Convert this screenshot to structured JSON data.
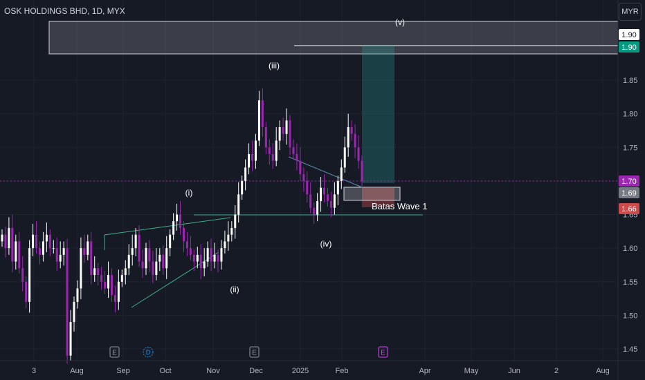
{
  "header": {
    "title": "OSK HOLDINGS BHD, 1D, MYX",
    "currency": "MYR"
  },
  "price_tags": [
    {
      "value": "1.90",
      "bg": "#ffffff",
      "fg": "#131722"
    },
    {
      "value": "1.90",
      "bg": "#089981",
      "fg": "#ffffff"
    },
    {
      "value": "1.70",
      "bg": "#9c27b0",
      "fg": "#ffffff"
    },
    {
      "value": "1.69",
      "bg": "#787b86",
      "fg": "#ffffff"
    },
    {
      "value": "1.66",
      "bg": "#cc4a4a",
      "fg": "#ffffff"
    }
  ],
  "wave_labels": [
    "(i)",
    "(ii)",
    "(iii)",
    "(iv)",
    "(v)"
  ],
  "annotation": "Batas Wave 1",
  "event_markers": [
    "E",
    "D",
    "E",
    "E"
  ],
  "colors": {
    "background": "#161a25",
    "candle_up": "#ffffff",
    "candle_down": "#9c27b0",
    "trendline": "#3fae88",
    "target_zone": "#2a2e39",
    "profit_zone": "#26a69a",
    "loss_zone": "#ef5350",
    "axis_text": "#b2b5be"
  },
  "chart_data": {
    "type": "candlestick",
    "title": "OSK HOLDINGS BHD, 1D, MYX",
    "y_tick_labels": [
      "1.45",
      "1.50",
      "1.55",
      "1.60",
      "1.65",
      "1.70",
      "1.75",
      "1.80",
      "1.85"
    ],
    "x_tick_labels": [
      "3",
      "Aug",
      "Sep",
      "Oct",
      "Nov",
      "Dec",
      "2025",
      "Feb",
      "Apr",
      "May",
      "Jun",
      "2",
      "Aug"
    ],
    "ylim": [
      1.43,
      1.93
    ],
    "current_price": 1.7,
    "levels": {
      "target": 1.9,
      "entry": 1.69,
      "stop": 1.66,
      "wave1_top": 1.655
    },
    "price_path": [
      1.62,
      1.6,
      1.63,
      1.58,
      1.61,
      1.57,
      1.55,
      1.52,
      1.6,
      1.62,
      1.6,
      1.59,
      1.61,
      1.62,
      1.6,
      1.6,
      1.58,
      1.59,
      1.6,
      1.44,
      1.49,
      1.52,
      1.54,
      1.6,
      1.59,
      1.61,
      1.56,
      1.57,
      1.56,
      1.55,
      1.54,
      1.56,
      1.53,
      1.52,
      1.55,
      1.56,
      1.57,
      1.59,
      1.6,
      1.62,
      1.58,
      1.57,
      1.6,
      1.58,
      1.56,
      1.58,
      1.59,
      1.57,
      1.6,
      1.62,
      1.64,
      1.65,
      1.63,
      1.61,
      1.6,
      1.59,
      1.58,
      1.59,
      1.57,
      1.58,
      1.6,
      1.58,
      1.59,
      1.58,
      1.6,
      1.61,
      1.62,
      1.63,
      1.65,
      1.68,
      1.7,
      1.72,
      1.74,
      1.73,
      1.76,
      1.82,
      1.78,
      1.75,
      1.74,
      1.73,
      1.76,
      1.78,
      1.77,
      1.79,
      1.75,
      1.74,
      1.73,
      1.71,
      1.7,
      1.68,
      1.66,
      1.65,
      1.67,
      1.69,
      1.68,
      1.67,
      1.66,
      1.68,
      1.7,
      1.72,
      1.75,
      1.78,
      1.77,
      1.75,
      1.73,
      1.7
    ]
  }
}
